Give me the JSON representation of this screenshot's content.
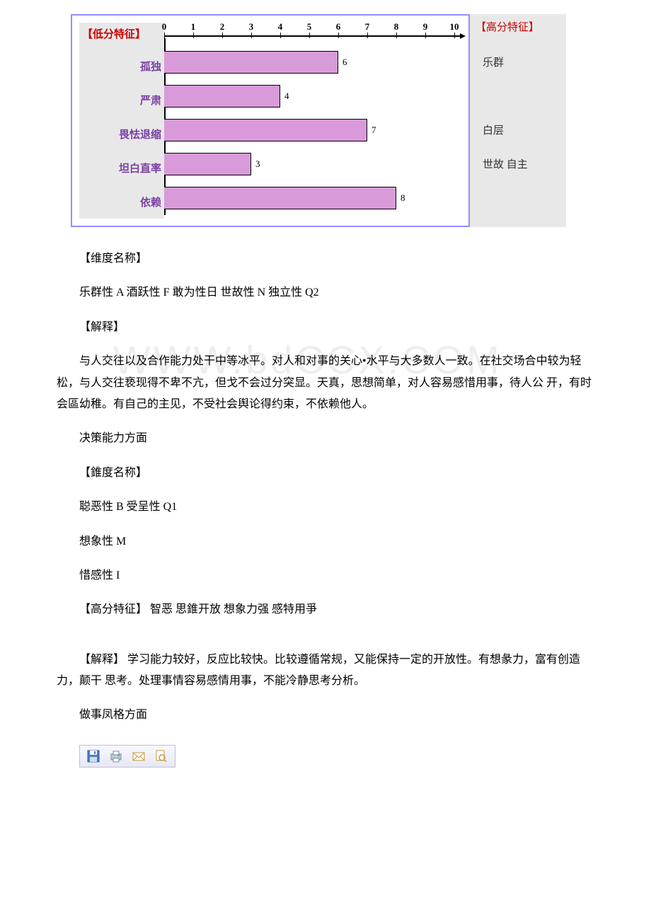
{
  "chart": {
    "type": "bar",
    "low_header": "【低分特征】",
    "high_header": "【高分特征】",
    "axis_ticks": [
      0,
      1,
      2,
      3,
      4,
      5,
      6,
      7,
      8,
      9,
      10
    ],
    "axis_max": 10,
    "bar_fill": "#d99ad9",
    "bar_border": "#000000",
    "bg_color": "#ffffff",
    "axis_color": "#000000",
    "rows": [
      {
        "left": "孤独",
        "value": 6,
        "right": "乐群"
      },
      {
        "left": "严肃",
        "value": 4,
        "right": ""
      },
      {
        "left": "畏怯退缩",
        "value": 7,
        "right": "白层"
      },
      {
        "left": "坦白直率",
        "value": 3,
        "right": "世故 自主"
      },
      {
        "left": "依赖",
        "value": 8,
        "right": ""
      }
    ]
  },
  "body": {
    "dim_label": "【维度名称】",
    "dim_text": "乐群性 A 酒跃性 F 敢为性日 世故性 N 独立性 Q2",
    "explain_label": "【解释】",
    "explain_text": "与人交往以及合作能力处干中等冰平。对人和对事的关心•水平与大多数人一致。在社交场合中较为轻 松，与人交往亵现得不卑不亢，但戈不会过分突显。天真，思想简单，对人容易感惜用事，待人公 开，有时会區幼稚。有自己的主见，不受社会舆论得约束，不依赖他人。",
    "section2_title": "决策能力方面",
    "dim2_label": "【錐度名称】",
    "dim2_line1": "聪恶性 B 受呈性 Q1",
    "dim2_line2": "想象性 M",
    "dim2_line3": "惜感性 I",
    "high_trait": "【高分特征】 智恶 思錐开放 想象力强 感特用爭",
    "explain2": "【解释】 学习能力较好，反应比较快。比较遵循常规，又能保持一定的开放性。有想彖力，富有创造力，颠干 思考。处理事情容易感情用事，不能冷静思考分析。",
    "section3_title": "做事凤格方面"
  },
  "watermark": "WWW.bdCCX.COM",
  "toolbar_icons": [
    "save-icon",
    "print-icon",
    "email-icon",
    "preview-icon"
  ]
}
